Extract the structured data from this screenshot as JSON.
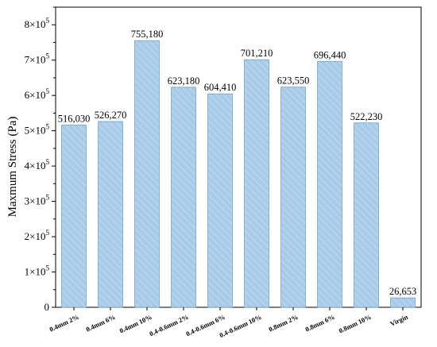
{
  "chart_data": {
    "type": "bar",
    "xlabel": "",
    "ylabel": "Maxmum Stress (Pa)",
    "ylim": [
      0,
      850000
    ],
    "yticks": [
      {
        "value": 0,
        "mantissa": "0",
        "exp": ""
      },
      {
        "value": 100000,
        "mantissa": "1×10",
        "exp": "5"
      },
      {
        "value": 200000,
        "mantissa": "2×10",
        "exp": "5"
      },
      {
        "value": 300000,
        "mantissa": "3×10",
        "exp": "5"
      },
      {
        "value": 400000,
        "mantissa": "4×10",
        "exp": "5"
      },
      {
        "value": 500000,
        "mantissa": "5×10",
        "exp": "5"
      },
      {
        "value": 600000,
        "mantissa": "6×10",
        "exp": "5"
      },
      {
        "value": 700000,
        "mantissa": "7×10",
        "exp": "5"
      },
      {
        "value": 800000,
        "mantissa": "8×10",
        "exp": "5"
      }
    ],
    "categories": [
      "0.4mm 2%",
      "0.4mm 6%",
      "0.4mm 10%",
      "0.4-0.6mm 2%",
      "0.4-0.6mm 6%",
      "0.4-0.6mm 10%",
      "0.8mm 2%",
      "0.8mm 6%",
      "0.8mm 10%",
      "Virgin"
    ],
    "values": [
      516030,
      526270,
      755180,
      623180,
      604410,
      701210,
      623550,
      696440,
      522230,
      26653
    ],
    "data_labels": [
      "516,030",
      "526,270",
      "755,180",
      "623,180",
      "604,410",
      "701,210",
      "623,550",
      "696,440",
      "522,230",
      "26,653"
    ],
    "bar_color": "#a8cbe8",
    "hatch_color": "#c9def0",
    "grid": false,
    "legend": "none"
  }
}
